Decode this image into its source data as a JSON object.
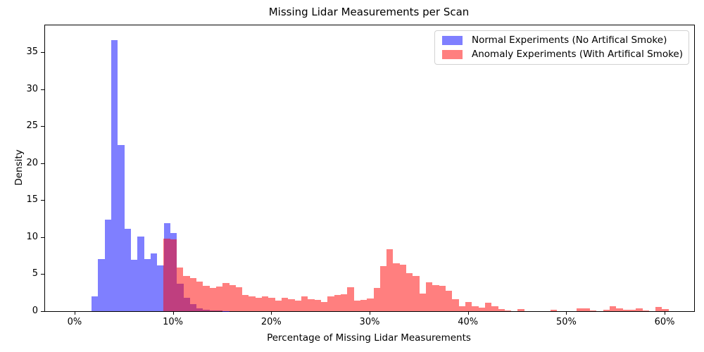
{
  "title": "Missing Lidar Measurements per Scan",
  "chart_data": {
    "type": "bar",
    "subtype": "overlapping-histogram",
    "title": "Missing Lidar Measurements per Scan",
    "xlabel": "Percentage of Missing Lidar Measurements",
    "ylabel": "Density",
    "xlim": [
      -3,
      63
    ],
    "ylim": [
      0,
      38.6
    ],
    "grid": false,
    "legend_position": "upper right",
    "x_ticks": {
      "values": [
        0,
        10,
        20,
        30,
        40,
        50,
        60
      ],
      "labels": [
        "0%",
        "10%",
        "20%",
        "30%",
        "40%",
        "50%",
        "60%"
      ]
    },
    "y_ticks": {
      "values": [
        0,
        5,
        10,
        15,
        20,
        25,
        30,
        35
      ],
      "labels": [
        "0",
        "5",
        "10",
        "15",
        "20",
        "25",
        "30",
        "35"
      ]
    },
    "series": [
      {
        "name": "Normal Experiments (No Artifical Smoke)",
        "color": "#0000ff",
        "fill_alpha": 0.5,
        "bin_start_percent": 1.73,
        "bin_width_percent": 0.667,
        "densities": [
          2.0,
          7.0,
          12.4,
          36.6,
          22.4,
          11.1,
          6.9,
          10.1,
          7.0,
          7.8,
          6.2,
          11.9,
          10.6,
          3.7,
          1.8,
          1.0,
          0.35,
          0.15,
          0.1,
          0.1,
          0.05
        ]
      },
      {
        "name": "Anomaly Experiments (With Artifical Smoke)",
        "color": "#ff0000",
        "fill_alpha": 0.5,
        "bin_start_percent": 9.05,
        "bin_width_percent": 0.667,
        "densities": [
          9.8,
          9.7,
          5.9,
          4.8,
          4.5,
          4.0,
          3.4,
          3.1,
          3.3,
          3.8,
          3.5,
          3.2,
          2.2,
          2.0,
          1.8,
          2.0,
          1.8,
          1.45,
          1.8,
          1.65,
          1.45,
          2.0,
          1.65,
          1.5,
          1.25,
          2.0,
          2.2,
          2.3,
          3.2,
          1.45,
          1.55,
          1.7,
          3.1,
          6.1,
          8.4,
          6.45,
          6.3,
          5.1,
          4.8,
          2.4,
          3.9,
          3.55,
          3.4,
          2.76,
          1.66,
          0.7,
          1.2,
          0.7,
          0.5,
          1.1,
          0.7,
          0.25,
          0.1,
          0,
          0.3,
          0,
          0,
          0,
          0,
          0.17,
          0,
          0,
          0,
          0.35,
          0.35,
          0.1,
          0,
          0.15,
          0.7,
          0.35,
          0.2,
          0.2,
          0.35,
          0.1,
          0,
          0.55,
          0.3
        ]
      }
    ]
  },
  "legend": {
    "items": [
      {
        "label": "Normal Experiments (No Artifical Smoke)",
        "swatch_color": "#7f7fff"
      },
      {
        "label": "Anomaly Experiments (With Artifical Smoke)",
        "swatch_color": "#ff7f7f"
      }
    ]
  }
}
